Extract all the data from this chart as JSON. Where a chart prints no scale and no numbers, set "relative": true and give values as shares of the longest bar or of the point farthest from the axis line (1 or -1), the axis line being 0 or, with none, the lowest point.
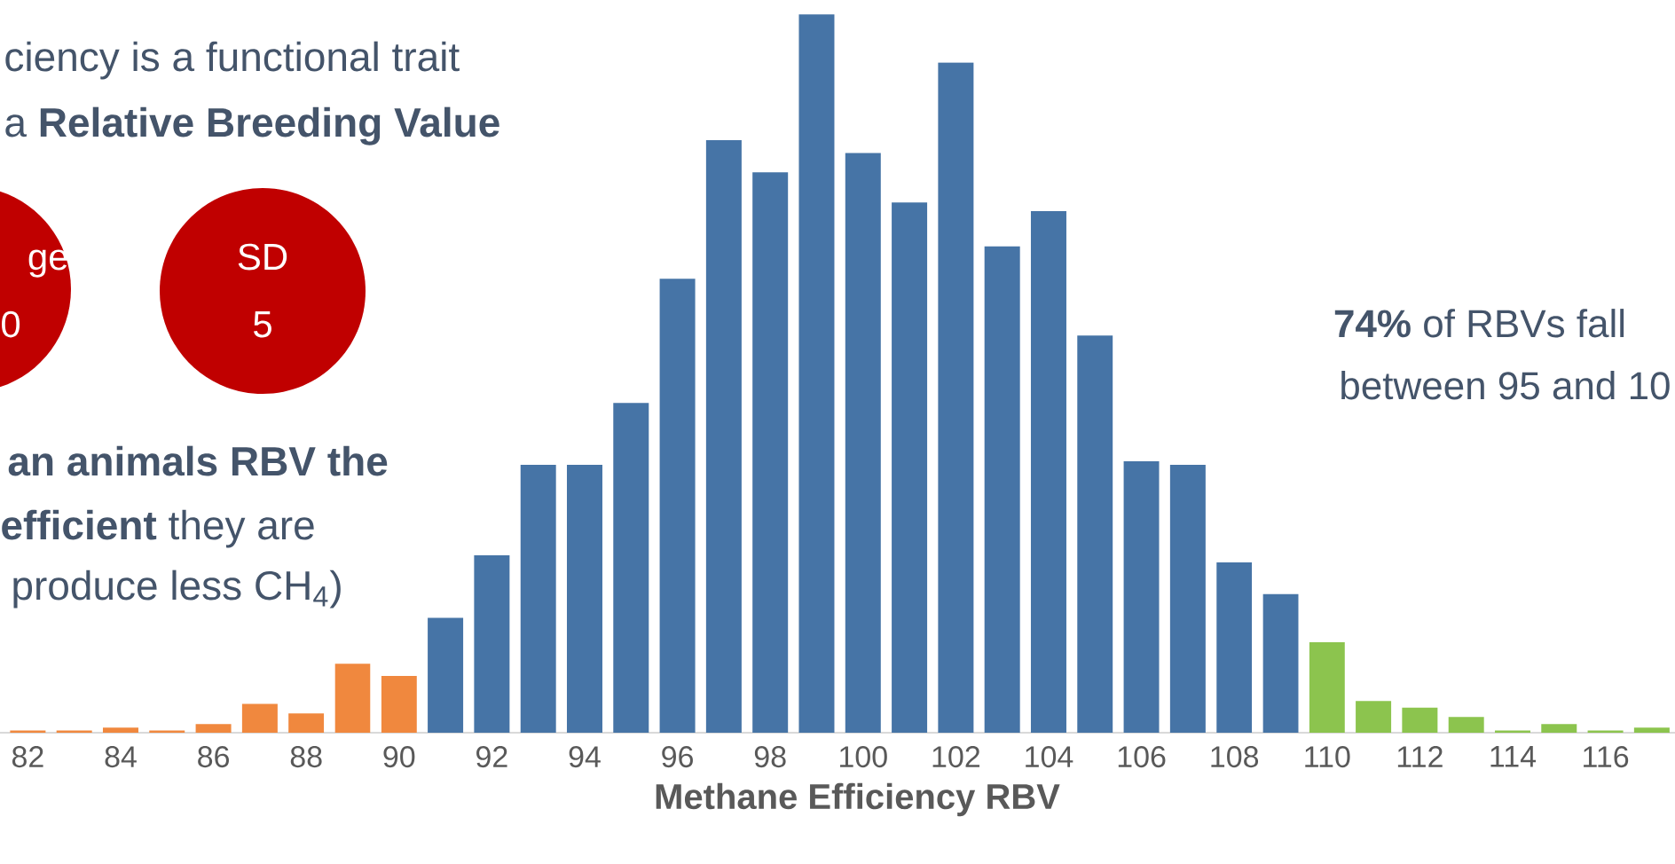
{
  "chart_data": {
    "type": "bar",
    "relative": true,
    "xlabel": "Methane Efficiency RBV",
    "categories": [
      "82",
      null,
      "84",
      null,
      "86",
      null,
      "88",
      null,
      "90",
      null,
      "92",
      null,
      "94",
      null,
      "96",
      null,
      "98",
      null,
      "100",
      null,
      "102",
      null,
      "104",
      null,
      "106",
      null,
      "108",
      null,
      "110",
      null,
      "112",
      null,
      "114",
      null,
      "116",
      null
    ],
    "values": [
      0.003,
      0.003,
      0.007,
      0.003,
      0.012,
      0.04,
      0.027,
      0.096,
      0.079,
      0.16,
      0.247,
      0.373,
      0.373,
      0.459,
      0.632,
      0.825,
      0.78,
      1,
      0.807,
      0.738,
      0.933,
      0.677,
      0.726,
      0.553,
      0.378,
      0.373,
      0.237,
      0.193,
      0.126,
      0.044,
      0.035,
      0.022,
      0.003,
      0.012,
      0.003,
      0.007
    ],
    "colors": [
      "#f0883e",
      "#f0883e",
      "#f0883e",
      "#f0883e",
      "#f0883e",
      "#f0883e",
      "#f0883e",
      "#f0883e",
      "#f0883e",
      "#4674a6",
      "#4674a6",
      "#4674a6",
      "#4674a6",
      "#4674a6",
      "#4674a6",
      "#4674a6",
      "#4674a6",
      "#4674a6",
      "#4674a6",
      "#4674a6",
      "#4674a6",
      "#4674a6",
      "#4674a6",
      "#4674a6",
      "#4674a6",
      "#4674a6",
      "#4674a6",
      "#4674a6",
      "#8cc44e",
      "#8cc44e",
      "#8cc44e",
      "#8cc44e",
      "#8cc44e",
      "#8cc44e",
      "#8cc44e",
      "#8cc44e"
    ],
    "annotations": [
      "ciency is a functional trait",
      "a **Relative Breeding Value**",
      "ge",
      "0",
      "SD",
      "5",
      "**an animals RBV the**",
      "**efficient** they are",
      "produce less CH$_{4}$)",
      "**74%** of RBVs fall",
      "between 95 and 10"
    ]
  }
}
